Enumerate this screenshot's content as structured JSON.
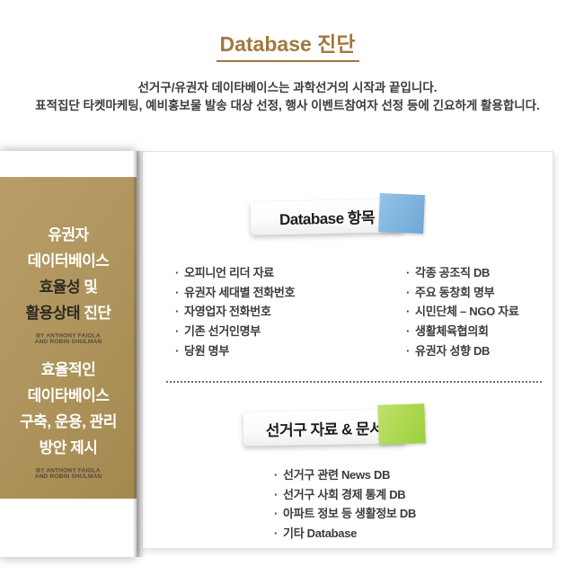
{
  "header": {
    "title": "Database 진단",
    "subtitle1": "선거구/유권자 데이타베이스는 과학선거의 시작과 끝입니다.",
    "subtitle2": "표적집단 타켓마케팅, 예비홍보물 발송 대상 선정, 행사 이벤트참여자 선정 등에 긴요하게 활용합니다."
  },
  "cover": {
    "block1": [
      "유권자",
      "데이터베이스"
    ],
    "block1_line3_dark": "효율성",
    "block1_line3_light": "및",
    "block1_line4_dark": "활용상태",
    "block1_line4_light": "진단",
    "byline_line1": "BY ANTHONY FAIOLA",
    "byline_line2": "AND ROBIN SHULMAN",
    "block2": [
      "효율적인",
      "데이타베이스",
      "구축, 운용, 관리",
      "방안 제시"
    ]
  },
  "section_database": {
    "header_label": "Database 항목",
    "sticky_color": "#7fb4dd",
    "items_left": [
      "오피니언 리더 자료",
      "유권자 세대별 전화번호",
      "자영업자 전화번호",
      "기존 선거인명부",
      "당원 명부"
    ],
    "items_right": [
      "각종 공조직 DB",
      "주요 동창회 명부",
      "시민단체 – NGO 자료",
      "생활체육협의회",
      "유권자 성향 DB"
    ]
  },
  "section_district": {
    "header_label": "선거구 자료 & 문서",
    "sticky_color": "#abd84f",
    "items": [
      "선거구 관련 News DB",
      "선거구 사회 경제 통계 DB",
      "아파트 정보 등 생활정보 DB",
      "기타 Database"
    ]
  },
  "colors": {
    "accent_brown": "#a1793f",
    "cover_tan": "#b0965e",
    "text_dark": "#3c3c3c",
    "note_blue": "#7fb4dd",
    "note_green": "#abd84f"
  }
}
